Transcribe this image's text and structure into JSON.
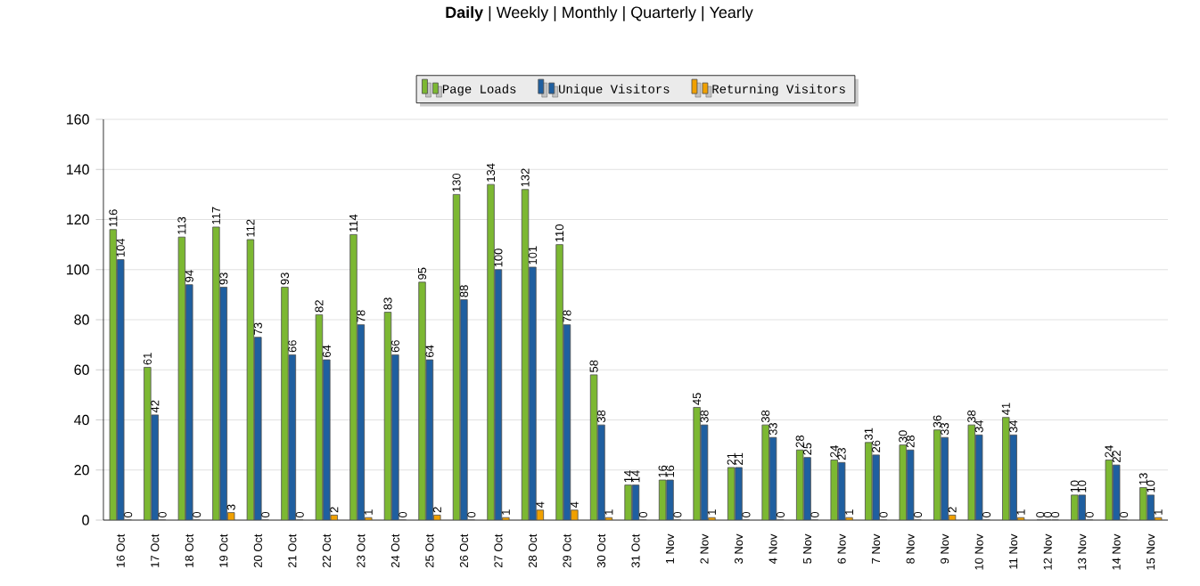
{
  "chart_data": {
    "type": "bar",
    "title": "**Daily** | Weekly | Monthly | Quarterly | Yearly",
    "categories": [
      "16 Oct",
      "17 Oct",
      "18 Oct",
      "19 Oct",
      "20 Oct",
      "21 Oct",
      "22 Oct",
      "23 Oct",
      "24 Oct",
      "25 Oct",
      "26 Oct",
      "27 Oct",
      "28 Oct",
      "29 Oct",
      "30 Oct",
      "31 Oct",
      "1 Nov",
      "2 Nov",
      "3 Nov",
      "4 Nov",
      "5 Nov",
      "6 Nov",
      "7 Nov",
      "8 Nov",
      "9 Nov",
      "10 Nov",
      "11 Nov",
      "12 Nov",
      "13 Nov",
      "14 Nov",
      "15 Nov"
    ],
    "series": [
      {
        "name": "Page Loads",
        "color": "#7cb832",
        "values": [
          116,
          61,
          113,
          117,
          112,
          93,
          82,
          114,
          83,
          95,
          130,
          134,
          132,
          110,
          58,
          14,
          16,
          45,
          21,
          38,
          28,
          24,
          31,
          30,
          36,
          38,
          41,
          0,
          10,
          24,
          13
        ]
      },
      {
        "name": "Unique Visitors",
        "color": "#1f5fa0",
        "values": [
          104,
          42,
          94,
          93,
          73,
          66,
          64,
          78,
          66,
          64,
          88,
          100,
          101,
          78,
          38,
          14,
          16,
          38,
          21,
          33,
          25,
          23,
          26,
          28,
          33,
          34,
          34,
          0,
          10,
          22,
          10
        ]
      },
      {
        "name": "Returning Visitors",
        "color": "#f0a000",
        "values": [
          0,
          0,
          0,
          3,
          0,
          0,
          2,
          1,
          0,
          2,
          0,
          1,
          4,
          4,
          1,
          0,
          0,
          1,
          0,
          0,
          0,
          1,
          0,
          0,
          2,
          0,
          1,
          0,
          0,
          0,
          1
        ]
      }
    ],
    "ylim": [
      0,
      160
    ],
    "yticks": [
      0,
      20,
      40,
      60,
      80,
      100,
      120,
      140,
      160
    ],
    "grid": "y",
    "legend": "top",
    "data_labels": true
  }
}
